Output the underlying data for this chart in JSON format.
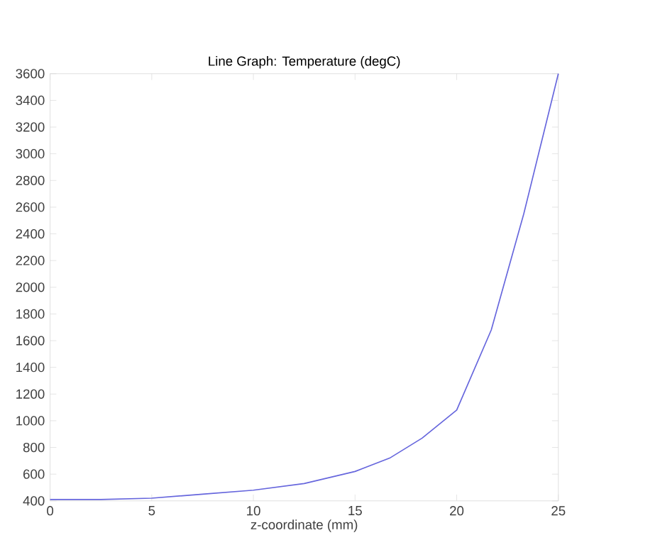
{
  "chart_data": {
    "type": "line",
    "title": "Line Graph: Temperature (degC)",
    "xlabel": "z-coordinate (mm)",
    "x": [
      0,
      2.5,
      5,
      7.5,
      10,
      12.5,
      15,
      16.7,
      18.3,
      20,
      21.7,
      23.3,
      25
    ],
    "series": [
      {
        "color": "#6666dd",
        "values": [
          410,
          410,
          420,
          450,
          480,
          530,
          620,
          720,
          870,
          1080,
          1680,
          2550,
          3600
        ]
      }
    ],
    "xlim": [
      0,
      25
    ],
    "xticks": [
      0,
      5,
      10,
      15,
      20,
      25
    ],
    "ylim": [
      400,
      3600
    ],
    "yticks": [
      400,
      600,
      800,
      1000,
      1200,
      1400,
      1600,
      1800,
      2000,
      2200,
      2400,
      2600,
      2800,
      3000,
      3200,
      3400,
      3600
    ],
    "grid": false,
    "marker": "none",
    "line_style": "solid"
  }
}
